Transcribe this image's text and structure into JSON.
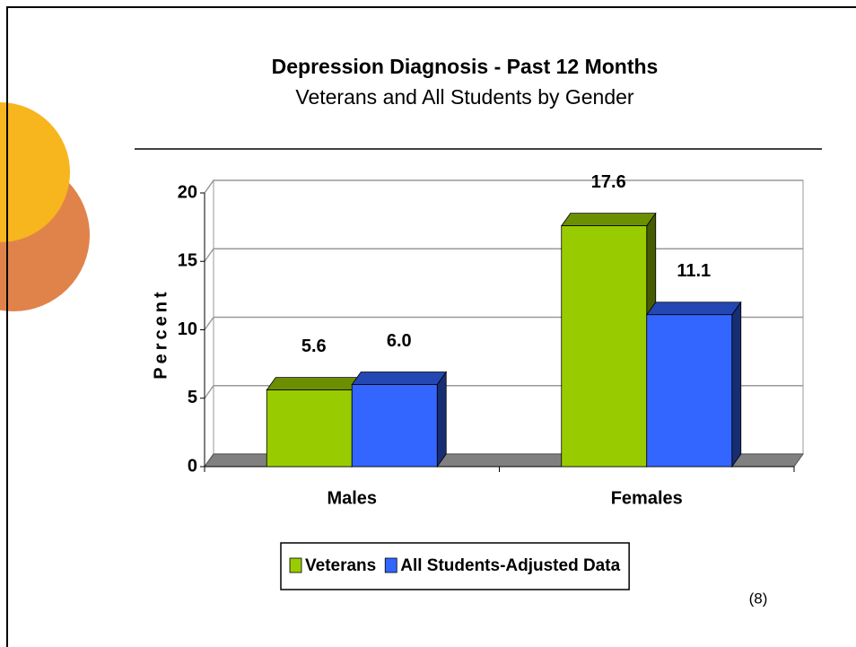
{
  "chart_data": {
    "type": "bar3d",
    "title": "Depression Diagnosis - Past 12 Months",
    "subtitle": "Veterans and All Students by Gender",
    "y_label": "Percent",
    "annotation": "(8)",
    "categories": [
      "Males",
      "Females"
    ],
    "series": [
      {
        "name": "Veterans",
        "color": "#99cc00",
        "values": [
          5.6,
          17.6
        ],
        "value_labels": [
          "5.6",
          "17.6"
        ]
      },
      {
        "name": "All Students-Adjusted Data",
        "color": "#3366ff",
        "values": [
          6,
          11.1
        ],
        "value_labels": [
          "6.0",
          "11.1"
        ]
      }
    ],
    "ylim": [
      0,
      20
    ],
    "yticks": [
      0,
      5,
      10,
      15,
      20
    ],
    "grid": true,
    "legend": "bottom"
  }
}
